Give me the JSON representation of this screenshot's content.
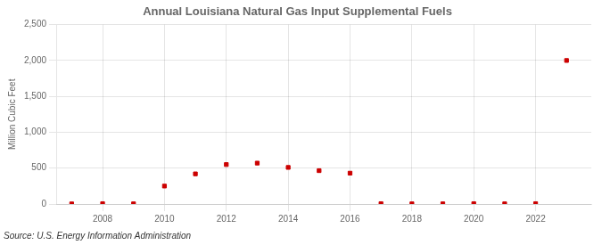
{
  "chart_data": {
    "type": "scatter",
    "title": "Annual Louisiana Natural Gas Input Supplemental Fuels",
    "ylabel": "Million Cubic Feet",
    "annotations": [
      "Source: U.S. Energy Information Administration"
    ],
    "x": [
      2007,
      2008,
      2009,
      2010,
      2011,
      2012,
      2013,
      2014,
      2015,
      2016,
      2017,
      2018,
      2019,
      2020,
      2021,
      2022,
      2023
    ],
    "values": [
      2,
      5,
      3,
      250,
      420,
      550,
      570,
      510,
      465,
      430,
      5,
      3,
      3,
      5,
      3,
      5,
      2000
    ],
    "color": "#cc0000",
    "marker": "square",
    "xlim": [
      2006.5,
      2023.8
    ],
    "xticks": [
      2008,
      2010,
      2012,
      2014,
      2016,
      2018,
      2020,
      2022
    ],
    "ylim": [
      0,
      2500
    ],
    "yticks": [
      0,
      500,
      {
        "value": 1000,
        "label": "1,000"
      },
      {
        "value": 1500,
        "label": "1,500"
      },
      {
        "value": 2000,
        "label": "2,000"
      },
      {
        "value": 2500,
        "label": "2,500"
      }
    ],
    "grid": true
  }
}
